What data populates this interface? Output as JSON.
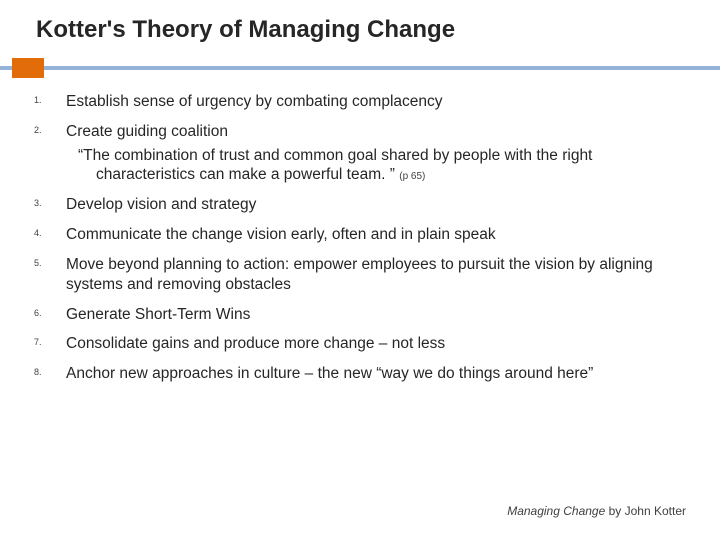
{
  "title": "Kotter's Theory of Managing Change",
  "accent_color": "#e36c0a",
  "divider_color": "#95b3d7",
  "text_color": "#262626",
  "background_color": "#ffffff",
  "steps": [
    {
      "text": "Establish sense of urgency by combating complacency"
    },
    {
      "text": "Create guiding coalition",
      "quote": "“The combination of trust and common goal shared by people with the right characteristics can make a powerful team. ”",
      "quote_cite": "(p 65)"
    },
    {
      "text": "Develop vision and strategy"
    },
    {
      "text": "Communicate the change vision early, often and in plain speak"
    },
    {
      "text": "Move beyond planning to action:  empower employees to pursuit the vision by aligning systems and removing obstacles"
    },
    {
      "text": "Generate Short-Term Wins"
    },
    {
      "text": "Consolidate gains and produce more change – not less"
    },
    {
      "text": "Anchor new approaches in culture – the new “way we do things around here”"
    }
  ],
  "footer": {
    "book": "Managing Change",
    "by": " by John Kotter"
  }
}
